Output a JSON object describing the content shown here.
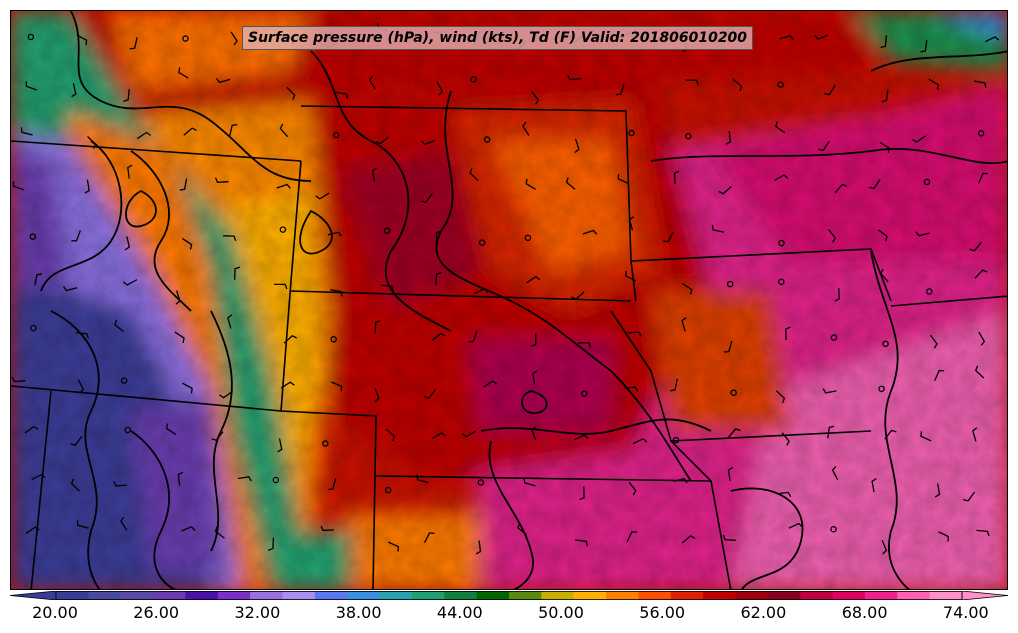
{
  "title": "Surface pressure (hPa), wind (kts), Td (F) Valid: 201806010200",
  "colorbar": {
    "labels": [
      "20.00",
      "26.00",
      "32.00",
      "38.00",
      "44.00",
      "50.00",
      "56.00",
      "62.00",
      "68.00",
      "74.00"
    ],
    "colors": [
      "#3a3d98",
      "#4a49a0",
      "#5a4aa8",
      "#6a3cb0",
      "#4a10a8",
      "#7a30c8",
      "#9870e0",
      "#a890f0",
      "#5a78f0",
      "#3a90e0",
      "#2aa0b0",
      "#20a070",
      "#108040",
      "#006600",
      "#5a8a10",
      "#c8b000",
      "#ffb000",
      "#ff8000",
      "#ff5000",
      "#e02000",
      "#c00000",
      "#a00010",
      "#880020",
      "#c00040",
      "#e00060",
      "#f02090",
      "#ff60b0",
      "#ff90c8"
    ]
  }
}
